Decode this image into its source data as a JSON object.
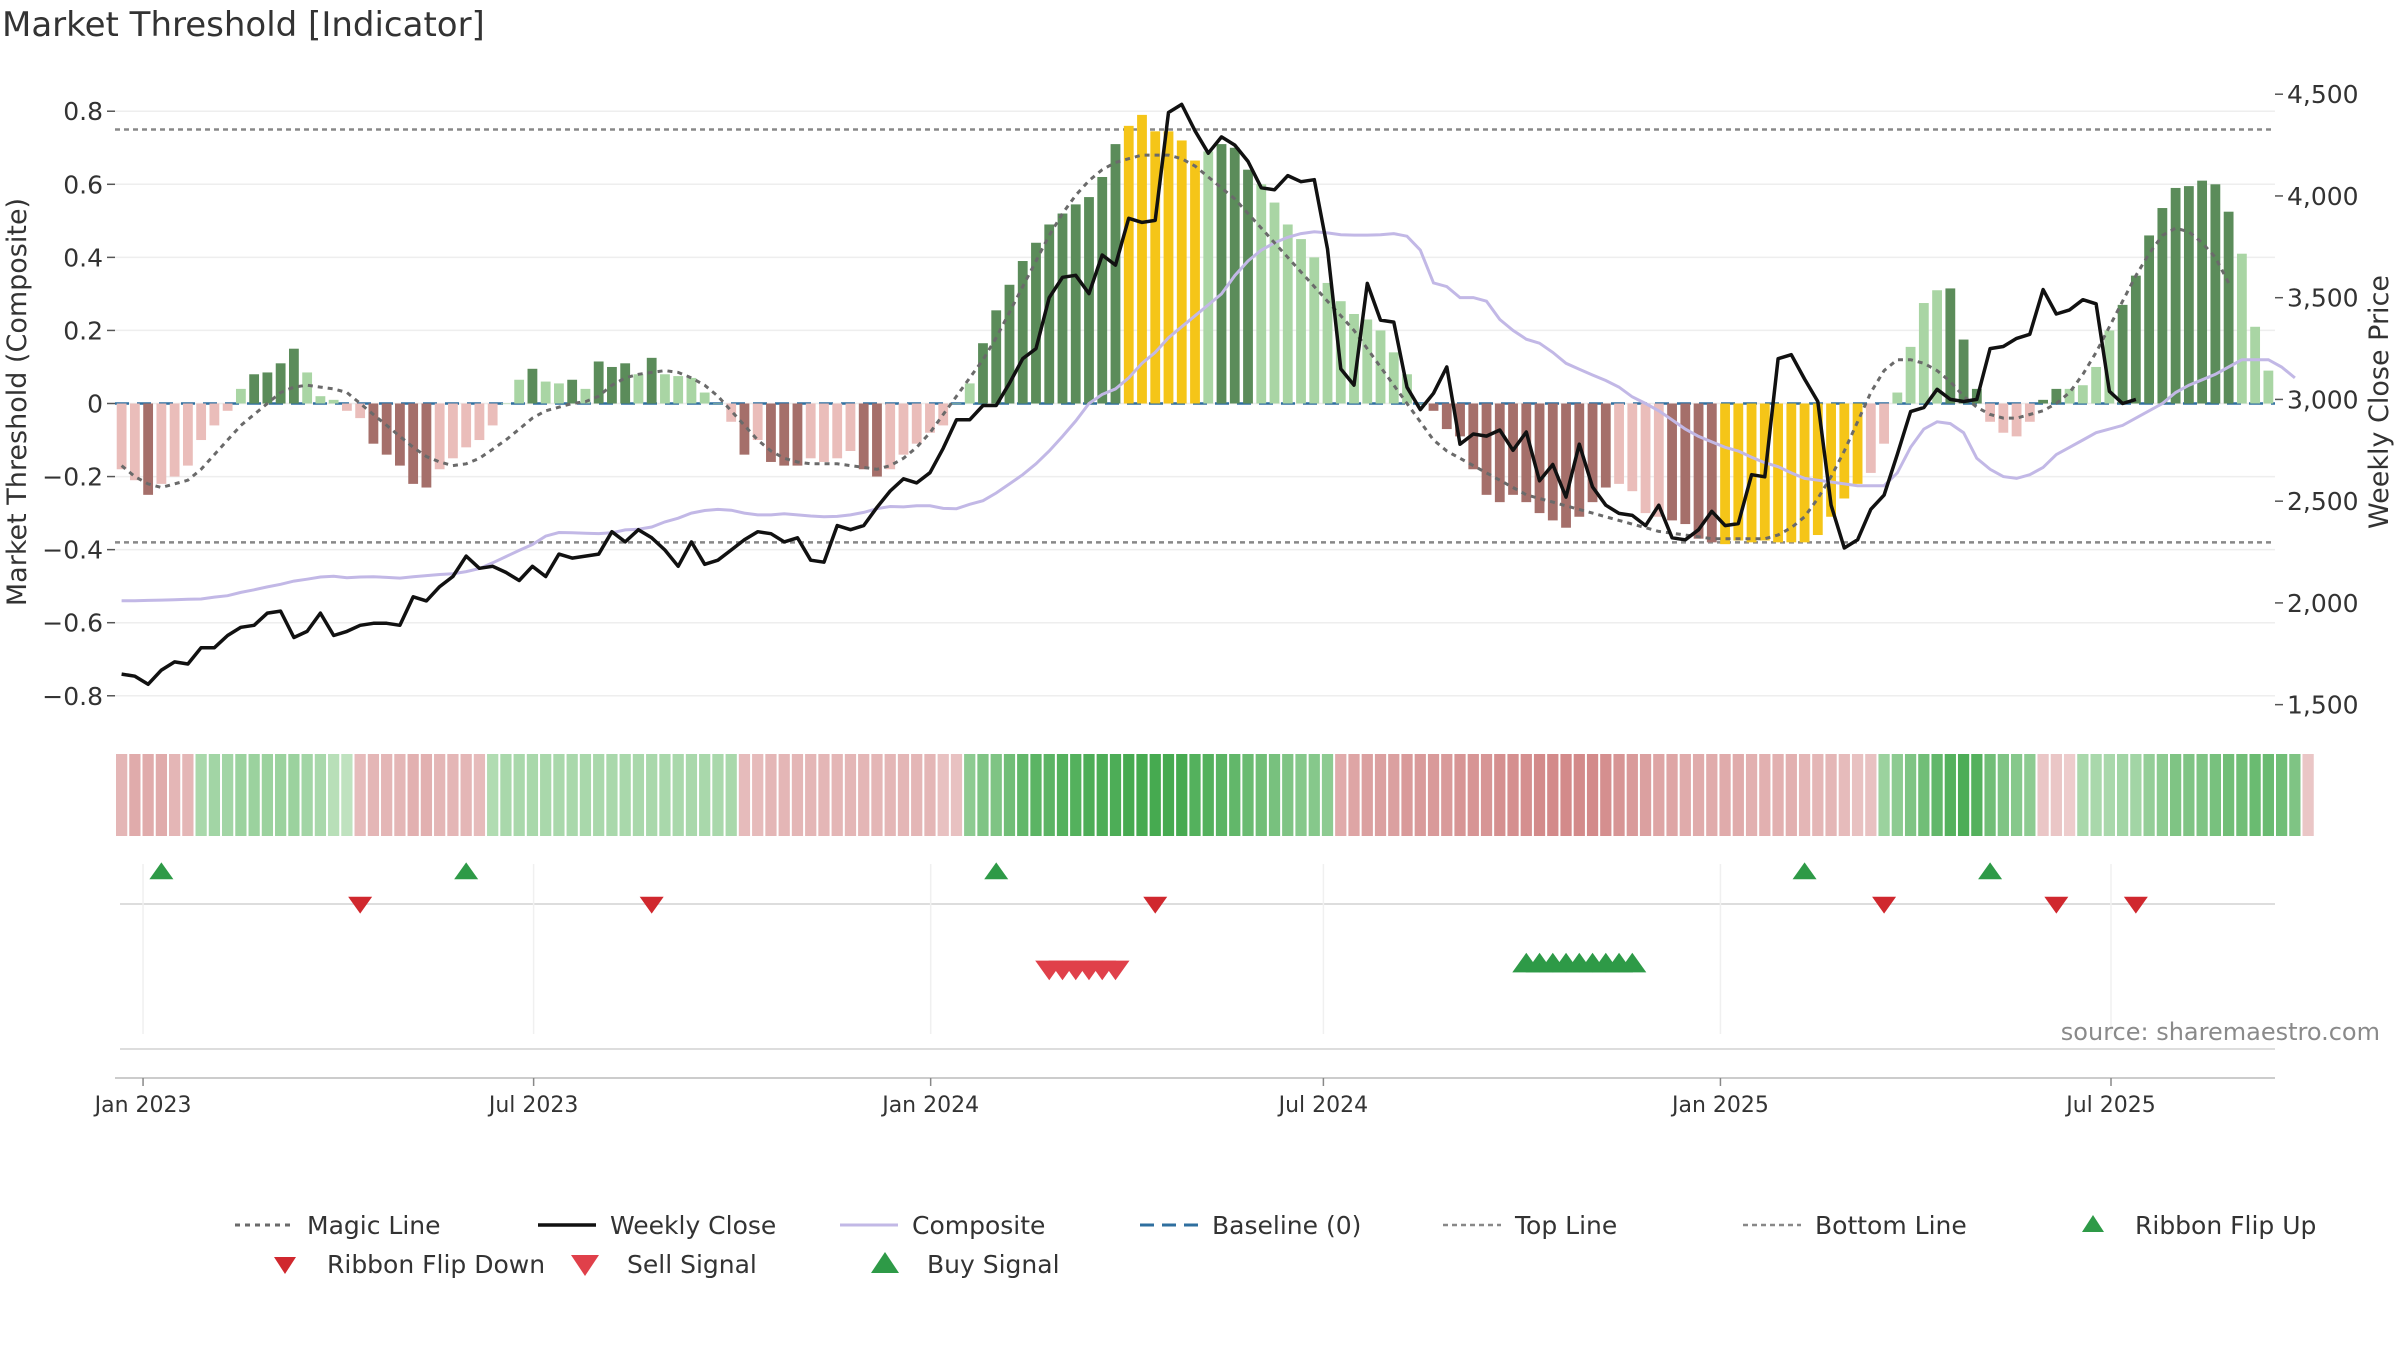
{
  "chart_data": {
    "type": "bar",
    "title": "Market Threshold [Indicator]",
    "ylabel": "Market Threshold (Composite)",
    "ylabel_right": "Weekly Close Price",
    "source": "source: sharemaestro.com",
    "ylim": [
      -0.88,
      0.88
    ],
    "ylim_right": [
      1400,
      4560
    ],
    "yticks": [
      -0.8,
      -0.6,
      -0.4,
      -0.2,
      0,
      0.2,
      0.4,
      0.6,
      0.8
    ],
    "ytick_labels": [
      "−0.8",
      "−0.6",
      "−0.4",
      "−0.2",
      "0",
      "0.2",
      "0.4",
      "0.6",
      "0.8"
    ],
    "yticks_right": [
      1500,
      2000,
      2500,
      3000,
      3500,
      4000,
      4500
    ],
    "ytick_labels_right": [
      "1,500",
      "2,000",
      "2,500",
      "3,000",
      "3,500",
      "4,000",
      "4,500"
    ],
    "x_start": "2022-12-19",
    "x_end": "2025-09-15",
    "xticks": [
      {
        "date": "2023-01-01",
        "label": "Jan 2023"
      },
      {
        "date": "2023-07-01",
        "label": "Jul 2023"
      },
      {
        "date": "2024-01-01",
        "label": "Jan 2024"
      },
      {
        "date": "2024-07-01",
        "label": "Jul 2024"
      },
      {
        "date": "2025-01-01",
        "label": "Jan 2025"
      },
      {
        "date": "2025-07-01",
        "label": "Jul 2025"
      }
    ],
    "top_line": 0.75,
    "bottom_line": -0.38,
    "grid": true,
    "legend_position": "bottom",
    "legend": [
      {
        "key": "magic",
        "label": "Magic Line"
      },
      {
        "key": "close",
        "label": "Weekly Close"
      },
      {
        "key": "composite",
        "label": "Composite"
      },
      {
        "key": "baseline",
        "label": "Baseline (0)"
      },
      {
        "key": "top",
        "label": "Top Line"
      },
      {
        "key": "bottom",
        "label": "Bottom Line"
      },
      {
        "key": "flipup",
        "label": "Ribbon Flip Up"
      },
      {
        "key": "flipdown",
        "label": "Ribbon Flip Down"
      },
      {
        "key": "sell",
        "label": "Sell Signal"
      },
      {
        "key": "buy",
        "label": "Buy Signal"
      }
    ],
    "colors": {
      "pos_dark": "#5b8c5a",
      "pos_light": "#a9d5a4",
      "neg_dark": "#a56f6a",
      "neg_light": "#eabdba",
      "extreme": "#f5c518",
      "close": "#111111",
      "composite": "#c2b8e6",
      "magic": "#6a6a6a",
      "baseline": "#2f6f9f",
      "ref": "#888888",
      "flip_up": "#2e9a47",
      "flip_down": "#d0282e",
      "buy": "#2e9a47",
      "sell": "#e0404a"
    },
    "bar_values": [
      -0.18,
      -0.21,
      -0.25,
      -0.22,
      -0.2,
      -0.17,
      -0.1,
      -0.06,
      -0.02,
      0.04,
      0.08,
      0.085,
      0.11,
      0.15,
      0.085,
      0.02,
      0.01,
      -0.02,
      -0.04,
      -0.11,
      -0.14,
      -0.17,
      -0.22,
      -0.23,
      -0.18,
      -0.15,
      -0.12,
      -0.1,
      -0.06,
      0.0,
      0.065,
      0.095,
      0.06,
      0.055,
      0.065,
      0.04,
      0.115,
      0.1,
      0.11,
      0.08,
      0.125,
      0.08,
      0.075,
      0.07,
      0.03,
      0.0,
      -0.05,
      -0.14,
      -0.1,
      -0.16,
      -0.17,
      -0.17,
      -0.15,
      -0.16,
      -0.15,
      -0.13,
      -0.18,
      -0.2,
      -0.18,
      -0.14,
      -0.11,
      -0.08,
      -0.06,
      0.0,
      0.055,
      0.165,
      0.255,
      0.325,
      0.39,
      0.44,
      0.49,
      0.52,
      0.545,
      0.565,
      0.62,
      0.71,
      0.76,
      0.79,
      0.745,
      0.745,
      0.72,
      0.665,
      0.69,
      0.71,
      0.7,
      0.64,
      0.6,
      0.55,
      0.49,
      0.45,
      0.4,
      0.33,
      0.28,
      0.245,
      0.23,
      0.2,
      0.14,
      0.08,
      0.0,
      -0.02,
      -0.07,
      -0.09,
      -0.18,
      -0.25,
      -0.27,
      -0.25,
      -0.27,
      -0.3,
      -0.32,
      -0.34,
      -0.31,
      -0.27,
      -0.23,
      -0.22,
      -0.24,
      -0.3,
      -0.31,
      -0.32,
      -0.33,
      -0.37,
      -0.38,
      -0.385,
      -0.375,
      -0.38,
      -0.375,
      -0.38,
      -0.38,
      -0.38,
      -0.36,
      -0.31,
      -0.26,
      -0.22,
      -0.19,
      -0.11,
      0.03,
      0.155,
      0.275,
      0.31,
      0.315,
      0.175,
      0.04,
      -0.05,
      -0.08,
      -0.09,
      -0.05,
      0.01,
      0.04,
      0.04,
      0.05,
      0.1,
      0.2,
      0.27,
      0.35,
      0.46,
      0.535,
      0.59,
      0.595,
      0.61,
      0.6,
      0.525,
      0.41,
      0.21,
      0.09
    ],
    "bar_categories": [
      "light",
      "light",
      "dark",
      "light",
      "light",
      "light",
      "light",
      "light",
      "light",
      "light",
      "dark",
      "dark",
      "dark",
      "dark",
      "light",
      "light",
      "light",
      "light",
      "light",
      "dark",
      "dark",
      "dark",
      "dark",
      "dark",
      "light",
      "light",
      "light",
      "light",
      "light",
      "light",
      "light",
      "dark",
      "light",
      "light",
      "dark",
      "light",
      "dark",
      "dark",
      "dark",
      "light",
      "dark",
      "light",
      "light",
      "light",
      "light",
      "light",
      "light",
      "dark",
      "light",
      "dark",
      "dark",
      "dark",
      "light",
      "light",
      "light",
      "light",
      "dark",
      "dark",
      "light",
      "light",
      "light",
      "light",
      "light",
      "light",
      "light",
      "dark",
      "dark",
      "dark",
      "dark",
      "dark",
      "dark",
      "dark",
      "dark",
      "dark",
      "dark",
      "dark",
      "extreme",
      "extreme",
      "extreme",
      "extreme",
      "extreme",
      "extreme",
      "light",
      "dark",
      "dark",
      "dark",
      "light",
      "light",
      "light",
      "light",
      "light",
      "light",
      "light",
      "light",
      "light",
      "light",
      "light",
      "light",
      "light",
      "dark",
      "dark",
      "dark",
      "dark",
      "dark",
      "dark",
      "dark",
      "dark",
      "dark",
      "dark",
      "dark",
      "dark",
      "dark",
      "dark",
      "light",
      "light",
      "light",
      "light",
      "dark",
      "dark",
      "dark",
      "dark",
      "extreme",
      "extreme",
      "extreme",
      "extreme",
      "extreme",
      "extreme",
      "extreme",
      "extreme",
      "extreme",
      "extreme",
      "extreme",
      "light",
      "light",
      "light",
      "light",
      "light",
      "light",
      "dark",
      "dark",
      "dark",
      "light",
      "light",
      "light",
      "light",
      "dark",
      "dark",
      "light",
      "light",
      "light",
      "light",
      "dark",
      "dark",
      "dark",
      "dark",
      "dark",
      "dark",
      "dark",
      "dark",
      "dark",
      "light",
      "light",
      "light",
      "light"
    ],
    "weekly_close": [
      1650,
      1640,
      1600,
      1670,
      1710,
      1700,
      1780,
      1780,
      1840,
      1880,
      1890,
      1950,
      1960,
      1830,
      1860,
      1950,
      1840,
      1860,
      1890,
      1900,
      1900,
      1890,
      2030,
      2010,
      2080,
      2130,
      2230,
      2170,
      2180,
      2150,
      2110,
      2180,
      2130,
      2240,
      2220,
      2230,
      2240,
      2350,
      2300,
      2360,
      2320,
      2260,
      2180,
      2300,
      2190,
      2210,
      2260,
      2310,
      2350,
      2340,
      2300,
      2320,
      2210,
      2200,
      2380,
      2360,
      2380,
      2470,
      2550,
      2610,
      2590,
      2640,
      2760,
      2900,
      2900,
      2970,
      2970,
      3080,
      3200,
      3250,
      3500,
      3600,
      3610,
      3520,
      3710,
      3660,
      3890,
      3870,
      3880,
      4410,
      4450,
      4320,
      4210,
      4290,
      4250,
      4170,
      4040,
      4030,
      4100,
      4070,
      4080,
      3740,
      3150,
      3070,
      3570,
      3390,
      3380,
      3060,
      2950,
      3030,
      3160,
      2780,
      2830,
      2820,
      2850,
      2750,
      2840,
      2600,
      2680,
      2520,
      2780,
      2570,
      2480,
      2440,
      2430,
      2380,
      2480,
      2320,
      2310,
      2360,
      2450,
      2380,
      2390,
      2630,
      2620,
      3200,
      3220,
      3100,
      2990,
      2480,
      2270,
      2310,
      2460,
      2530,
      2730,
      2940,
      2960,
      3050,
      3000,
      2990,
      3000,
      3250,
      3260,
      3300,
      3320,
      3540,
      3420,
      3440,
      3490,
      3470,
      3040,
      2980,
      3000
    ],
    "composite": [
      -0.54,
      -0.54,
      -0.539,
      -0.538,
      -0.537,
      -0.536,
      -0.535,
      -0.53,
      -0.526,
      -0.517,
      -0.51,
      -0.502,
      -0.495,
      -0.486,
      -0.481,
      -0.475,
      -0.473,
      -0.477,
      -0.475,
      -0.474,
      -0.476,
      -0.478,
      -0.474,
      -0.471,
      -0.468,
      -0.466,
      -0.46,
      -0.452,
      -0.436,
      -0.419,
      -0.402,
      -0.386,
      -0.363,
      -0.353,
      -0.354,
      -0.355,
      -0.356,
      -0.354,
      -0.346,
      -0.344,
      -0.338,
      -0.324,
      -0.314,
      -0.3,
      -0.293,
      -0.29,
      -0.292,
      -0.3,
      -0.305,
      -0.305,
      -0.302,
      -0.305,
      -0.308,
      -0.31,
      -0.309,
      -0.305,
      -0.298,
      -0.288,
      -0.282,
      -0.283,
      -0.28,
      -0.28,
      -0.287,
      -0.288,
      -0.276,
      -0.266,
      -0.245,
      -0.22,
      -0.195,
      -0.165,
      -0.13,
      -0.09,
      -0.048,
      0.0,
      0.025,
      0.04,
      0.07,
      0.11,
      0.14,
      0.18,
      0.21,
      0.24,
      0.27,
      0.3,
      0.35,
      0.39,
      0.42,
      0.44,
      0.455,
      0.465,
      0.47,
      0.467,
      0.462,
      0.461,
      0.461,
      0.462,
      0.465,
      0.458,
      0.42,
      0.33,
      0.32,
      0.29,
      0.29,
      0.28,
      0.23,
      0.2,
      0.176,
      0.165,
      0.14,
      0.11,
      0.094,
      0.078,
      0.063,
      0.045,
      0.018,
      0.0,
      -0.02,
      -0.045,
      -0.07,
      -0.09,
      -0.105,
      -0.12,
      -0.13,
      -0.147,
      -0.162,
      -0.173,
      -0.19,
      -0.205,
      -0.21,
      -0.215,
      -0.22,
      -0.225,
      -0.225,
      -0.225,
      -0.19,
      -0.12,
      -0.07,
      -0.05,
      -0.055,
      -0.08,
      -0.15,
      -0.18,
      -0.2,
      -0.205,
      -0.195,
      -0.175,
      -0.14,
      -0.12,
      -0.1,
      -0.08,
      -0.07,
      -0.06,
      -0.04,
      -0.02,
      0.0,
      0.03,
      0.05,
      0.065,
      0.08,
      0.1,
      0.12,
      0.12,
      0.12,
      0.1,
      0.07
    ],
    "magic_line": [
      -0.17,
      -0.2,
      -0.22,
      -0.23,
      -0.22,
      -0.21,
      -0.18,
      -0.14,
      -0.1,
      -0.06,
      -0.03,
      0.0,
      0.03,
      0.045,
      0.05,
      0.045,
      0.04,
      0.03,
      0.0,
      -0.03,
      -0.06,
      -0.09,
      -0.12,
      -0.145,
      -0.16,
      -0.17,
      -0.165,
      -0.15,
      -0.125,
      -0.1,
      -0.07,
      -0.04,
      -0.02,
      -0.01,
      0.0,
      0.005,
      0.02,
      0.05,
      0.07,
      0.08,
      0.085,
      0.09,
      0.085,
      0.07,
      0.05,
      0.02,
      -0.02,
      -0.06,
      -0.1,
      -0.13,
      -0.15,
      -0.16,
      -0.165,
      -0.165,
      -0.165,
      -0.17,
      -0.175,
      -0.18,
      -0.17,
      -0.15,
      -0.12,
      -0.08,
      -0.03,
      0.02,
      0.07,
      0.12,
      0.18,
      0.25,
      0.32,
      0.39,
      0.46,
      0.52,
      0.57,
      0.61,
      0.64,
      0.66,
      0.67,
      0.68,
      0.68,
      0.68,
      0.67,
      0.65,
      0.62,
      0.59,
      0.56,
      0.52,
      0.48,
      0.44,
      0.4,
      0.36,
      0.32,
      0.28,
      0.24,
      0.2,
      0.15,
      0.1,
      0.05,
      0.0,
      -0.05,
      -0.1,
      -0.13,
      -0.15,
      -0.17,
      -0.19,
      -0.21,
      -0.23,
      -0.25,
      -0.26,
      -0.27,
      -0.28,
      -0.29,
      -0.3,
      -0.31,
      -0.32,
      -0.33,
      -0.34,
      -0.35,
      -0.355,
      -0.36,
      -0.365,
      -0.37,
      -0.37,
      -0.37,
      -0.37,
      -0.37,
      -0.36,
      -0.34,
      -0.31,
      -0.26,
      -0.2,
      -0.13,
      -0.05,
      0.03,
      0.09,
      0.12,
      0.12,
      0.11,
      0.09,
      0.06,
      0.02,
      -0.01,
      -0.03,
      -0.04,
      -0.04,
      -0.03,
      -0.02,
      0.0,
      0.03,
      0.08,
      0.14,
      0.21,
      0.28,
      0.35,
      0.41,
      0.46,
      0.48,
      0.47,
      0.44,
      0.4,
      0.33
    ],
    "ribbon": [
      -0.35,
      -0.45,
      -0.45,
      -0.45,
      -0.35,
      -0.35,
      0.3,
      0.35,
      0.35,
      0.4,
      0.4,
      0.4,
      0.4,
      0.4,
      0.35,
      0.3,
      0.2,
      0.15,
      -0.3,
      -0.35,
      -0.35,
      -0.35,
      -0.4,
      -0.4,
      -0.35,
      -0.35,
      -0.35,
      -0.3,
      0.25,
      0.3,
      0.3,
      0.3,
      0.3,
      0.3,
      0.3,
      0.3,
      0.3,
      0.3,
      0.3,
      0.3,
      0.3,
      0.3,
      0.3,
      0.3,
      0.3,
      0.3,
      0.3,
      -0.3,
      -0.3,
      -0.35,
      -0.35,
      -0.35,
      -0.35,
      -0.35,
      -0.35,
      -0.35,
      -0.35,
      -0.35,
      -0.35,
      -0.35,
      -0.35,
      -0.35,
      -0.25,
      -0.25,
      0.5,
      0.6,
      0.6,
      0.7,
      0.8,
      0.85,
      0.85,
      0.9,
      0.9,
      0.95,
      0.95,
      0.95,
      1.0,
      1.0,
      1.0,
      1.0,
      1.0,
      0.9,
      0.9,
      0.85,
      0.8,
      0.75,
      0.7,
      0.65,
      0.6,
      0.55,
      0.55,
      0.5,
      -0.45,
      -0.5,
      -0.55,
      -0.55,
      -0.55,
      -0.6,
      -0.6,
      -0.6,
      -0.6,
      -0.65,
      -0.65,
      -0.65,
      -0.7,
      -0.7,
      -0.7,
      -0.75,
      -0.75,
      -0.75,
      -0.75,
      -0.75,
      -0.7,
      -0.65,
      -0.6,
      -0.55,
      -0.5,
      -0.5,
      -0.45,
      -0.45,
      -0.45,
      -0.45,
      -0.45,
      -0.4,
      -0.4,
      -0.4,
      -0.4,
      -0.35,
      -0.35,
      -0.35,
      -0.3,
      -0.25,
      -0.25,
      0.4,
      0.5,
      0.6,
      0.7,
      0.8,
      0.9,
      0.95,
      0.9,
      0.7,
      0.6,
      0.55,
      0.5,
      -0.2,
      -0.2,
      -0.15,
      0.3,
      0.3,
      0.3,
      0.35,
      0.35,
      0.45,
      0.5,
      0.6,
      0.6,
      0.6,
      0.65,
      0.7,
      0.7,
      0.75,
      0.75,
      0.7,
      0.6,
      -0.2
    ],
    "ribbon_flip_up": [
      3,
      26,
      66,
      127,
      141
    ],
    "ribbon_flip_down": [
      18,
      40,
      78,
      133,
      146,
      152
    ],
    "sell_signals": [
      70,
      71,
      72,
      73,
      74,
      75
    ],
    "buy_signals": [
      106,
      107,
      108,
      109,
      110,
      111,
      112,
      113,
      114
    ]
  }
}
